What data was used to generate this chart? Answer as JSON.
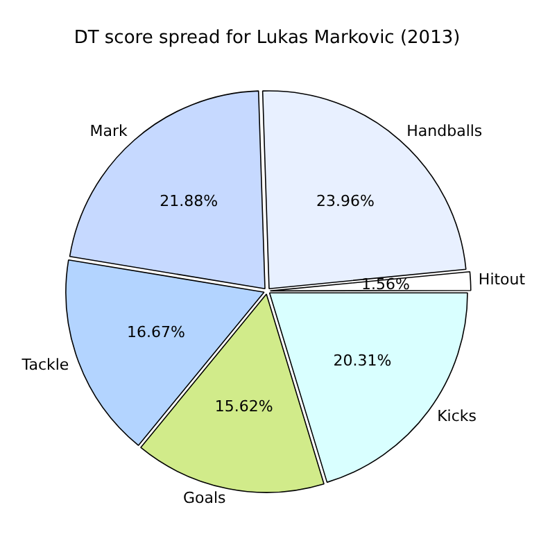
{
  "chart_data": {
    "type": "pie",
    "title": "DT score spread for Lukas Markovic (2013)",
    "categories": [
      "Kicks",
      "Goals",
      "Tackle",
      "Mark",
      "Handballs",
      "Hitout"
    ],
    "values": [
      20.31,
      15.62,
      16.67,
      21.88,
      23.96,
      1.56
    ],
    "value_labels": [
      "20.31%",
      "15.62%",
      "16.67%",
      "21.88%",
      "23.96%",
      "1.56%"
    ],
    "colors": [
      "#d9ffff",
      "#d1eb8a",
      "#b3d4ff",
      "#c6d9ff",
      "#e8f0ff",
      "#ffffff"
    ],
    "legend": false
  }
}
